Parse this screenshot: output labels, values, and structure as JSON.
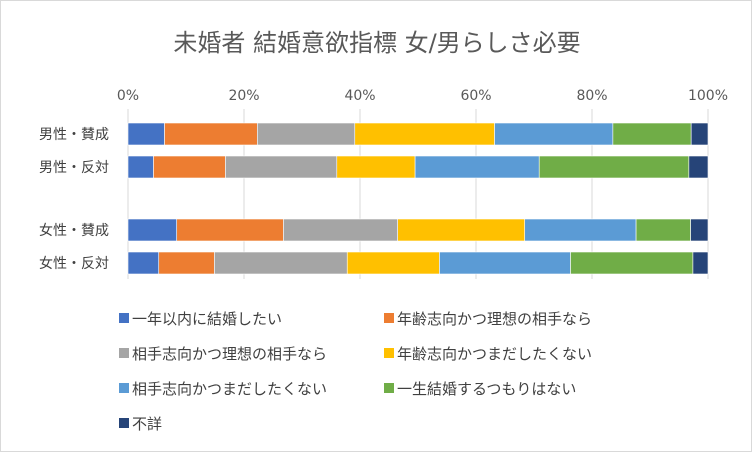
{
  "chart_data": {
    "type": "bar",
    "orientation": "horizontal",
    "stacked": "percent",
    "title": "未婚者 結婚意欲指標 女/男らしさ必要",
    "categories": [
      "男性・賛成",
      "男性・反対",
      "女性・賛成",
      "女性・反対"
    ],
    "xlim": [
      0,
      100
    ],
    "x_ticks": [
      "0%",
      "20%",
      "40%",
      "60%",
      "80%",
      "100%"
    ],
    "grid": true,
    "legend_position": "bottom",
    "series": [
      {
        "name": "一年以内に結婚したい",
        "color": "#4472c4",
        "values": [
          6.3,
          4.4,
          8.4,
          5.3
        ]
      },
      {
        "name": "年齢志向かつ理想の相手なら",
        "color": "#ed7d31",
        "values": [
          16.0,
          12.4,
          18.4,
          9.6
        ]
      },
      {
        "name": "相手志向かつ理想の相手なら",
        "color": "#a5a5a5",
        "values": [
          16.8,
          19.2,
          19.7,
          22.9
        ]
      },
      {
        "name": "年齢志向かつまだしたくない",
        "color": "#ffc000",
        "values": [
          24.1,
          13.5,
          21.9,
          15.9
        ]
      },
      {
        "name": "相手志向かつまだしたくない",
        "color": "#5b9bd5",
        "values": [
          20.4,
          21.4,
          19.2,
          22.6
        ]
      },
      {
        "name": "一生結婚するつもりはない",
        "color": "#70ad47",
        "values": [
          13.5,
          25.8,
          9.4,
          21.1
        ]
      },
      {
        "name": "不詳",
        "color": "#264478",
        "values": [
          2.9,
          3.3,
          3.0,
          2.6
        ]
      }
    ]
  }
}
